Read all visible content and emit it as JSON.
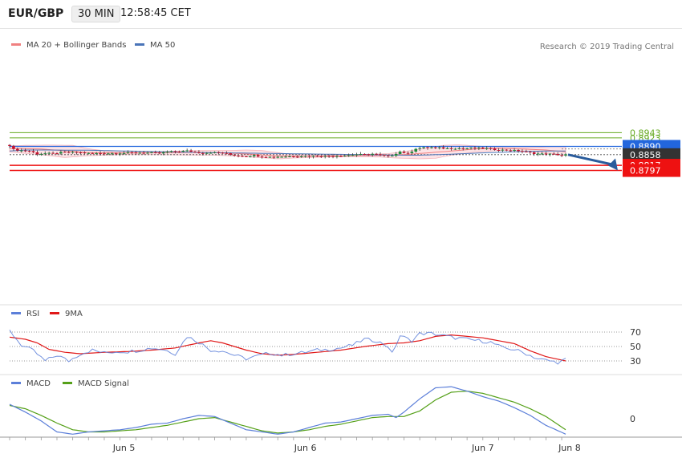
{
  "header": {
    "symbol": "EUR/GBP",
    "interval": "30 MIN",
    "time": "12:58:45 CET"
  },
  "credit": "Research © 2019 Trading Central",
  "colors": {
    "ma20": "#f08080",
    "bollinger_fill": "#fde3e6",
    "ma50": "#4a74b8",
    "up_candle": "#1d8a3a",
    "down_candle": "#c8102e",
    "green_level": "#66aa22",
    "blue_level": "#2266dd",
    "red_level": "#ee1111",
    "rsi": "#5c7fd9",
    "rsi_ma": "#e01919",
    "macd": "#5c7fd9",
    "macd_signal": "#55a019",
    "arrow": "#2a5c9c"
  },
  "chart_data": [
    {
      "type": "candlestick",
      "panel": "price",
      "legend": [
        {
          "label": "MA 20 + Bollinger Bands",
          "color_key": "ma20"
        },
        {
          "label": "MA 50",
          "color_key": "ma50"
        }
      ],
      "x_ticks": [
        "Jun 5",
        "Jun 6",
        "Jun 7",
        "Jun 8"
      ],
      "levels": [
        {
          "value": 0.8943,
          "label": "0.8943",
          "style": "green-line"
        },
        {
          "value": 0.8923,
          "label": "0.8923",
          "style": "green-line"
        },
        {
          "value": 0.889,
          "label": "0.8890",
          "style": "blue-badge"
        },
        {
          "value": 0.8858,
          "label": "0.8858",
          "style": "current-price"
        },
        {
          "value": 0.8817,
          "label": "0.8817",
          "style": "red-badge"
        },
        {
          "value": 0.8797,
          "label": "0.8797",
          "style": "red-badge"
        }
      ],
      "forecast_arrow": {
        "from": 0.8858,
        "to": 0.8797
      },
      "close_anchors": [
        [
          0,
          0.8894
        ],
        [
          1,
          0.8878
        ],
        [
          3,
          0.8874
        ],
        [
          5,
          0.8872
        ],
        [
          7,
          0.8861
        ],
        [
          9,
          0.8863
        ],
        [
          11,
          0.8862
        ],
        [
          13,
          0.8866
        ],
        [
          15,
          0.8866
        ],
        [
          17,
          0.8867
        ],
        [
          20,
          0.8863
        ],
        [
          22,
          0.8863
        ],
        [
          24,
          0.8864
        ],
        [
          26,
          0.8863
        ],
        [
          28,
          0.8864
        ],
        [
          30,
          0.8865
        ],
        [
          32,
          0.8866
        ],
        [
          36,
          0.8865
        ],
        [
          38,
          0.8863
        ],
        [
          40,
          0.8869
        ],
        [
          43,
          0.8871
        ],
        [
          45,
          0.8873
        ],
        [
          47,
          0.8868
        ],
        [
          49,
          0.8864
        ],
        [
          51,
          0.8867
        ],
        [
          54,
          0.8865
        ],
        [
          56,
          0.8858
        ],
        [
          58,
          0.8854
        ],
        [
          60,
          0.8852
        ],
        [
          62,
          0.8855
        ],
        [
          64,
          0.8851
        ],
        [
          66,
          0.8849
        ],
        [
          68,
          0.885
        ],
        [
          70,
          0.8851
        ],
        [
          72,
          0.8852
        ],
        [
          74,
          0.8853
        ],
        [
          76,
          0.8852
        ],
        [
          78,
          0.8853
        ],
        [
          80,
          0.8852
        ],
        [
          82,
          0.8853
        ],
        [
          84,
          0.8854
        ],
        [
          86,
          0.8856
        ],
        [
          88,
          0.8859
        ],
        [
          90,
          0.8858
        ],
        [
          92,
          0.8861
        ],
        [
          94,
          0.8856
        ],
        [
          96,
          0.8852
        ],
        [
          97,
          0.8856
        ],
        [
          99,
          0.887
        ],
        [
          101,
          0.8862
        ],
        [
          103,
          0.8882
        ],
        [
          105,
          0.8885
        ],
        [
          107,
          0.8886
        ],
        [
          109,
          0.8884
        ],
        [
          111,
          0.8882
        ],
        [
          113,
          0.8883
        ],
        [
          115,
          0.8882
        ],
        [
          117,
          0.8883
        ],
        [
          119,
          0.8883
        ],
        [
          121,
          0.8882
        ],
        [
          123,
          0.8878
        ],
        [
          125,
          0.8876
        ],
        [
          127,
          0.8875
        ],
        [
          129,
          0.8873
        ],
        [
          131,
          0.8868
        ],
        [
          133,
          0.8863
        ],
        [
          135,
          0.8861
        ],
        [
          137,
          0.886
        ],
        [
          139,
          0.8858
        ],
        [
          140,
          0.8855
        ],
        [
          141,
          0.8858
        ]
      ],
      "ma20": [
        [
          0,
          0.8882
        ],
        [
          8,
          0.888
        ],
        [
          14,
          0.8873
        ],
        [
          20,
          0.8866
        ],
        [
          30,
          0.8864
        ],
        [
          40,
          0.8866
        ],
        [
          48,
          0.8867
        ],
        [
          56,
          0.8864
        ],
        [
          62,
          0.8859
        ],
        [
          68,
          0.8853
        ],
        [
          76,
          0.8852
        ],
        [
          84,
          0.8853
        ],
        [
          92,
          0.8855
        ],
        [
          100,
          0.8858
        ],
        [
          106,
          0.8865
        ],
        [
          112,
          0.8872
        ],
        [
          118,
          0.888
        ],
        [
          124,
          0.8882
        ],
        [
          130,
          0.888
        ],
        [
          136,
          0.8876
        ],
        [
          141,
          0.8869
        ]
      ],
      "bollinger_upper": [
        [
          0,
          0.8892
        ],
        [
          4,
          0.8894
        ],
        [
          10,
          0.8895
        ],
        [
          16,
          0.8894
        ],
        [
          20,
          0.8881
        ],
        [
          26,
          0.8869
        ],
        [
          32,
          0.8867
        ],
        [
          40,
          0.8871
        ],
        [
          48,
          0.8874
        ],
        [
          56,
          0.8874
        ],
        [
          60,
          0.8876
        ],
        [
          64,
          0.8874
        ],
        [
          68,
          0.8866
        ],
        [
          72,
          0.8858
        ],
        [
          80,
          0.8857
        ],
        [
          86,
          0.8858
        ],
        [
          92,
          0.886
        ],
        [
          96,
          0.8862
        ],
        [
          100,
          0.887
        ],
        [
          106,
          0.8884
        ],
        [
          110,
          0.8894
        ],
        [
          114,
          0.8896
        ],
        [
          118,
          0.8892
        ],
        [
          124,
          0.8886
        ],
        [
          132,
          0.8886
        ],
        [
          138,
          0.8889
        ],
        [
          141,
          0.8888
        ]
      ],
      "bollinger_lower": [
        [
          0,
          0.8868
        ],
        [
          8,
          0.8858
        ],
        [
          14,
          0.8847
        ],
        [
          20,
          0.8854
        ],
        [
          28,
          0.8858
        ],
        [
          36,
          0.8858
        ],
        [
          44,
          0.8857
        ],
        [
          52,
          0.8856
        ],
        [
          58,
          0.8852
        ],
        [
          64,
          0.8846
        ],
        [
          68,
          0.8842
        ],
        [
          72,
          0.8845
        ],
        [
          80,
          0.8849
        ],
        [
          88,
          0.885
        ],
        [
          94,
          0.8849
        ],
        [
          98,
          0.8845
        ],
        [
          104,
          0.8842
        ],
        [
          108,
          0.8844
        ],
        [
          112,
          0.8856
        ],
        [
          118,
          0.8868
        ],
        [
          126,
          0.8876
        ],
        [
          132,
          0.887
        ],
        [
          138,
          0.8862
        ],
        [
          141,
          0.8855
        ]
      ],
      "ma50": [
        [
          0,
          0.8872
        ],
        [
          4,
          0.8876
        ],
        [
          10,
          0.8876
        ],
        [
          20,
          0.8875
        ],
        [
          30,
          0.8872
        ],
        [
          40,
          0.8869
        ],
        [
          50,
          0.8866
        ],
        [
          60,
          0.8864
        ],
        [
          70,
          0.8862
        ],
        [
          80,
          0.886
        ],
        [
          90,
          0.8858
        ],
        [
          100,
          0.8856
        ],
        [
          104,
          0.8856
        ],
        [
          112,
          0.886
        ],
        [
          120,
          0.8865
        ],
        [
          130,
          0.887
        ],
        [
          136,
          0.8872
        ],
        [
          141,
          0.8872
        ]
      ]
    },
    {
      "type": "line",
      "panel": "rsi",
      "legend": [
        {
          "label": "RSI",
          "color_key": "rsi"
        },
        {
          "label": "9MA",
          "color_key": "rsi_ma"
        }
      ],
      "y_ticks": [
        70,
        50,
        30
      ],
      "ylim": [
        20,
        80
      ],
      "rsi": [
        [
          0,
          72
        ],
        [
          3,
          52
        ],
        [
          6,
          44
        ],
        [
          9,
          30
        ],
        [
          12,
          38
        ],
        [
          15,
          30
        ],
        [
          18,
          40
        ],
        [
          21,
          45
        ],
        [
          24,
          41
        ],
        [
          27,
          43
        ],
        [
          30,
          43
        ],
        [
          33,
          45
        ],
        [
          36,
          48
        ],
        [
          39,
          46
        ],
        [
          42,
          40
        ],
        [
          45,
          64
        ],
        [
          48,
          56
        ],
        [
          51,
          45
        ],
        [
          54,
          44
        ],
        [
          57,
          38
        ],
        [
          60,
          33
        ],
        [
          63,
          37
        ],
        [
          66,
          41
        ],
        [
          69,
          38
        ],
        [
          72,
          40
        ],
        [
          75,
          42
        ],
        [
          78,
          45
        ],
        [
          81,
          46
        ],
        [
          84,
          48
        ],
        [
          87,
          52
        ],
        [
          90,
          60
        ],
        [
          93,
          58
        ],
        [
          96,
          50
        ],
        [
          97,
          40
        ],
        [
          99,
          65
        ],
        [
          102,
          58
        ],
        [
          104,
          68
        ],
        [
          107,
          68
        ],
        [
          110,
          65
        ],
        [
          113,
          62
        ],
        [
          116,
          60
        ],
        [
          119,
          58
        ],
        [
          122,
          56
        ],
        [
          125,
          48
        ],
        [
          128,
          46
        ],
        [
          131,
          40
        ],
        [
          134,
          33
        ],
        [
          137,
          30
        ],
        [
          139,
          28
        ],
        [
          141,
          32
        ]
      ],
      "ma": [
        [
          0,
          63
        ],
        [
          4,
          60
        ],
        [
          7,
          55
        ],
        [
          10,
          46
        ],
        [
          14,
          42
        ],
        [
          18,
          40
        ],
        [
          24,
          42
        ],
        [
          30,
          43
        ],
        [
          36,
          45
        ],
        [
          42,
          48
        ],
        [
          48,
          55
        ],
        [
          51,
          58
        ],
        [
          54,
          55
        ],
        [
          57,
          50
        ],
        [
          60,
          45
        ],
        [
          64,
          40
        ],
        [
          68,
          38
        ],
        [
          72,
          39
        ],
        [
          78,
          42
        ],
        [
          84,
          45
        ],
        [
          90,
          50
        ],
        [
          96,
          54
        ],
        [
          100,
          55
        ],
        [
          104,
          58
        ],
        [
          108,
          64
        ],
        [
          112,
          66
        ],
        [
          116,
          64
        ],
        [
          120,
          62
        ],
        [
          124,
          58
        ],
        [
          128,
          54
        ],
        [
          132,
          44
        ],
        [
          136,
          36
        ],
        [
          141,
          30
        ]
      ]
    },
    {
      "type": "line",
      "panel": "macd",
      "legend": [
        {
          "label": "MACD",
          "color_key": "macd"
        },
        {
          "label": "MACD Signal",
          "color_key": "macd_signal"
        }
      ],
      "y_ticks": [
        0
      ],
      "macd": [
        [
          0,
          0.0013
        ],
        [
          4,
          0.0006
        ],
        [
          8,
          -0.0002
        ],
        [
          12,
          -0.0012
        ],
        [
          16,
          -0.0014
        ],
        [
          20,
          -0.0012
        ],
        [
          24,
          -0.0011
        ],
        [
          28,
          -0.001
        ],
        [
          32,
          -0.0008
        ],
        [
          36,
          -0.0005
        ],
        [
          40,
          -0.0004
        ],
        [
          44,
          0.0
        ],
        [
          48,
          0.0003
        ],
        [
          52,
          0.0002
        ],
        [
          56,
          -0.0004
        ],
        [
          60,
          -0.001
        ],
        [
          64,
          -0.0012
        ],
        [
          68,
          -0.0014
        ],
        [
          72,
          -0.0012
        ],
        [
          76,
          -0.0008
        ],
        [
          80,
          -0.0004
        ],
        [
          84,
          -0.0003
        ],
        [
          88,
          0.0
        ],
        [
          92,
          0.0003
        ],
        [
          96,
          0.0004
        ],
        [
          98,
          0.0001
        ],
        [
          100,
          0.0006
        ],
        [
          104,
          0.0018
        ],
        [
          108,
          0.0028
        ],
        [
          112,
          0.0029
        ],
        [
          116,
          0.0025
        ],
        [
          120,
          0.002
        ],
        [
          124,
          0.0016
        ],
        [
          128,
          0.001
        ],
        [
          132,
          0.0003
        ],
        [
          136,
          -0.0006
        ],
        [
          141,
          -0.0014
        ]
      ],
      "signal": [
        [
          0,
          0.0012
        ],
        [
          4,
          0.0009
        ],
        [
          8,
          0.0003
        ],
        [
          12,
          -0.0004
        ],
        [
          16,
          -0.001
        ],
        [
          20,
          -0.0012
        ],
        [
          24,
          -0.0012
        ],
        [
          28,
          -0.0011
        ],
        [
          32,
          -0.001
        ],
        [
          36,
          -0.0008
        ],
        [
          40,
          -0.0006
        ],
        [
          44,
          -0.0003
        ],
        [
          48,
          0.0
        ],
        [
          52,
          0.0001
        ],
        [
          56,
          -0.0003
        ],
        [
          60,
          -0.0007
        ],
        [
          64,
          -0.0011
        ],
        [
          68,
          -0.0013
        ],
        [
          72,
          -0.0012
        ],
        [
          76,
          -0.001
        ],
        [
          80,
          -0.0007
        ],
        [
          84,
          -0.0005
        ],
        [
          88,
          -0.0002
        ],
        [
          92,
          0.0001
        ],
        [
          96,
          0.0002
        ],
        [
          100,
          0.0002
        ],
        [
          104,
          0.0007
        ],
        [
          108,
          0.0017
        ],
        [
          112,
          0.0024
        ],
        [
          116,
          0.0025
        ],
        [
          120,
          0.0023
        ],
        [
          124,
          0.0019
        ],
        [
          128,
          0.0015
        ],
        [
          132,
          0.0009
        ],
        [
          136,
          0.0002
        ],
        [
          141,
          -0.001
        ]
      ]
    }
  ]
}
